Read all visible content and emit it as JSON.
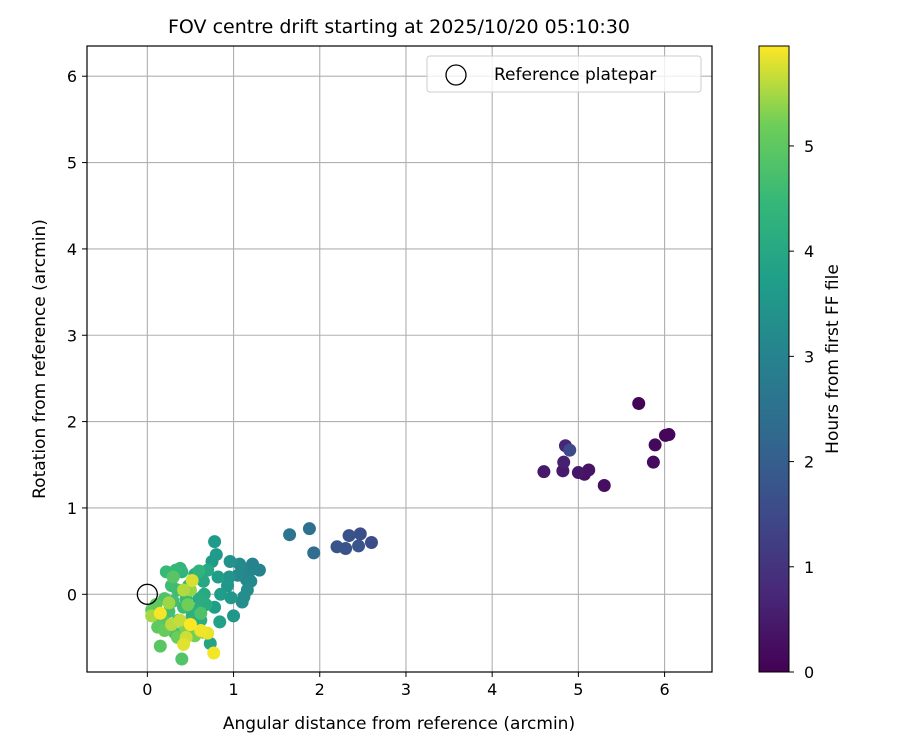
{
  "chart_data": {
    "type": "scatter",
    "title": "FOV centre drift starting at 2025/10/20 05:10:30",
    "xlabel": "Angular distance from reference (arcmin)",
    "ylabel": "Rotation from reference (arcmin)",
    "xlim": [
      -0.7,
      6.55
    ],
    "ylim": [
      -0.9,
      6.35
    ],
    "xticks": [
      0,
      1,
      2,
      3,
      4,
      5,
      6
    ],
    "yticks": [
      0,
      1,
      2,
      3,
      4,
      5,
      6
    ],
    "grid": true,
    "legend": {
      "placement": "top-right",
      "entries": [
        "Reference platepar"
      ]
    },
    "reference_point": {
      "x": 0,
      "y": 0
    },
    "colorbar": {
      "label": "Hours from first FF file",
      "range": [
        0,
        5.95
      ],
      "ticks": [
        0,
        1,
        2,
        3,
        4,
        5
      ],
      "colormap": "viridis"
    },
    "points": [
      {
        "x": 5.7,
        "y": 2.21,
        "h": 0.05
      },
      {
        "x": 6.01,
        "y": 1.84,
        "h": 0.1
      },
      {
        "x": 6.05,
        "y": 1.85,
        "h": 0.12
      },
      {
        "x": 5.89,
        "y": 1.73,
        "h": 0.15
      },
      {
        "x": 5.87,
        "y": 1.53,
        "h": 0.2
      },
      {
        "x": 5.3,
        "y": 1.26,
        "h": 0.25
      },
      {
        "x": 5.07,
        "y": 1.39,
        "h": 0.3
      },
      {
        "x": 5.12,
        "y": 1.44,
        "h": 0.35
      },
      {
        "x": 5.0,
        "y": 1.41,
        "h": 0.4
      },
      {
        "x": 4.6,
        "y": 1.42,
        "h": 0.45
      },
      {
        "x": 4.82,
        "y": 1.43,
        "h": 0.5
      },
      {
        "x": 4.83,
        "y": 1.53,
        "h": 0.6
      },
      {
        "x": 4.85,
        "y": 1.72,
        "h": 0.7
      },
      {
        "x": 4.9,
        "y": 1.67,
        "h": 1.5
      },
      {
        "x": 2.6,
        "y": 0.6,
        "h": 1.6
      },
      {
        "x": 2.47,
        "y": 0.7,
        "h": 1.65
      },
      {
        "x": 2.34,
        "y": 0.68,
        "h": 1.7
      },
      {
        "x": 2.3,
        "y": 0.53,
        "h": 1.72
      },
      {
        "x": 2.2,
        "y": 0.55,
        "h": 1.75
      },
      {
        "x": 2.45,
        "y": 0.56,
        "h": 1.8
      },
      {
        "x": 1.93,
        "y": 0.48,
        "h": 2.4
      },
      {
        "x": 1.88,
        "y": 0.76,
        "h": 2.5
      },
      {
        "x": 1.65,
        "y": 0.69,
        "h": 2.6
      },
      {
        "x": 1.3,
        "y": 0.28,
        "h": 3.0
      },
      {
        "x": 1.22,
        "y": 0.35,
        "h": 3.0
      },
      {
        "x": 1.18,
        "y": 0.26,
        "h": 3.05
      },
      {
        "x": 1.1,
        "y": 0.3,
        "h": 3.1
      },
      {
        "x": 1.15,
        "y": 0.17,
        "h": 3.1
      },
      {
        "x": 1.2,
        "y": 0.15,
        "h": 3.15
      },
      {
        "x": 1.07,
        "y": 0.35,
        "h": 3.2
      },
      {
        "x": 1.05,
        "y": 0.22,
        "h": 3.2
      },
      {
        "x": 1.16,
        "y": 0.05,
        "h": 3.25
      },
      {
        "x": 1.12,
        "y": -0.03,
        "h": 3.3
      },
      {
        "x": 1.1,
        "y": -0.09,
        "h": 3.3
      },
      {
        "x": 0.96,
        "y": 0.38,
        "h": 3.4
      },
      {
        "x": 0.95,
        "y": 0.2,
        "h": 3.45
      },
      {
        "x": 0.93,
        "y": 0.1,
        "h": 3.5
      },
      {
        "x": 0.97,
        "y": -0.04,
        "h": 3.55
      },
      {
        "x": 1.0,
        "y": -0.25,
        "h": 3.5
      },
      {
        "x": 0.78,
        "y": 0.61,
        "h": 3.6
      },
      {
        "x": 0.8,
        "y": 0.46,
        "h": 3.6
      },
      {
        "x": 0.75,
        "y": 0.38,
        "h": 3.65
      },
      {
        "x": 0.82,
        "y": 0.2,
        "h": 3.7
      },
      {
        "x": 0.85,
        "y": 0.0,
        "h": 3.7
      },
      {
        "x": 0.78,
        "y": -0.15,
        "h": 3.75
      },
      {
        "x": 0.84,
        "y": -0.32,
        "h": 3.8
      },
      {
        "x": 0.73,
        "y": -0.57,
        "h": 3.9
      },
      {
        "x": 0.7,
        "y": 0.28,
        "h": 4.0
      },
      {
        "x": 0.65,
        "y": 0.15,
        "h": 4.0
      },
      {
        "x": 0.66,
        "y": 0.0,
        "h": 4.05
      },
      {
        "x": 0.6,
        "y": -0.05,
        "h": 4.1
      },
      {
        "x": 0.68,
        "y": -0.12,
        "h": 4.1
      },
      {
        "x": 0.55,
        "y": 0.23,
        "h": 4.15
      },
      {
        "x": 0.58,
        "y": -0.18,
        "h": 4.2
      },
      {
        "x": 0.62,
        "y": -0.3,
        "h": 4.2
      },
      {
        "x": 0.52,
        "y": -0.25,
        "h": 4.25
      },
      {
        "x": 0.48,
        "y": 0.1,
        "h": 4.3
      },
      {
        "x": 0.56,
        "y": -0.4,
        "h": 4.3
      },
      {
        "x": 0.6,
        "y": 0.27,
        "h": 4.35
      },
      {
        "x": 0.4,
        "y": 0.26,
        "h": 4.4
      },
      {
        "x": 0.38,
        "y": 0.3,
        "h": 4.4
      },
      {
        "x": 0.33,
        "y": 0.28,
        "h": 4.45
      },
      {
        "x": 0.22,
        "y": 0.26,
        "h": 4.5
      },
      {
        "x": 0.45,
        "y": -0.05,
        "h": 4.5
      },
      {
        "x": 0.42,
        "y": -0.15,
        "h": 4.55
      },
      {
        "x": 0.35,
        "y": 0.05,
        "h": 4.6
      },
      {
        "x": 0.28,
        "y": 0.1,
        "h": 4.6
      },
      {
        "x": 0.3,
        "y": -0.08,
        "h": 4.65
      },
      {
        "x": 0.25,
        "y": -0.2,
        "h": 4.7
      },
      {
        "x": 0.36,
        "y": -0.3,
        "h": 4.7
      },
      {
        "x": 0.32,
        "y": -0.45,
        "h": 4.75
      },
      {
        "x": 0.2,
        "y": -0.05,
        "h": 4.8
      },
      {
        "x": 0.62,
        "y": -0.22,
        "h": 4.8
      },
      {
        "x": 0.4,
        "y": -0.75,
        "h": 4.85
      },
      {
        "x": 0.3,
        "y": 0.2,
        "h": 4.9
      },
      {
        "x": 0.18,
        "y": -0.3,
        "h": 4.9
      },
      {
        "x": 0.15,
        "y": -0.6,
        "h": 4.95
      },
      {
        "x": 0.12,
        "y": -0.38,
        "h": 5.0
      },
      {
        "x": 0.1,
        "y": -0.12,
        "h": 5.0
      },
      {
        "x": 0.05,
        "y": -0.18,
        "h": 5.05
      },
      {
        "x": 0.2,
        "y": -0.42,
        "h": 5.1
      },
      {
        "x": 0.35,
        "y": -0.5,
        "h": 5.15
      },
      {
        "x": 0.47,
        "y": -0.12,
        "h": 5.2
      },
      {
        "x": 0.55,
        "y": -0.48,
        "h": 5.25
      },
      {
        "x": 0.44,
        "y": -0.38,
        "h": 5.3
      },
      {
        "x": 0.65,
        "y": -0.44,
        "h": 5.35
      },
      {
        "x": 0.5,
        "y": 0.05,
        "h": 5.4
      },
      {
        "x": 0.25,
        "y": -0.1,
        "h": 5.45
      },
      {
        "x": 0.05,
        "y": -0.25,
        "h": 5.5
      },
      {
        "x": 0.42,
        "y": 0.05,
        "h": 5.55
      },
      {
        "x": 0.28,
        "y": -0.35,
        "h": 5.6
      },
      {
        "x": 0.38,
        "y": -0.3,
        "h": 5.65
      },
      {
        "x": 0.45,
        "y": -0.5,
        "h": 5.7
      },
      {
        "x": 0.52,
        "y": 0.16,
        "h": 5.75
      },
      {
        "x": 0.42,
        "y": -0.58,
        "h": 5.8
      },
      {
        "x": 0.7,
        "y": -0.45,
        "h": 5.85
      },
      {
        "x": 0.62,
        "y": -0.42,
        "h": 5.88
      },
      {
        "x": 0.77,
        "y": -0.68,
        "h": 5.9
      },
      {
        "x": 0.15,
        "y": -0.22,
        "h": 5.92
      },
      {
        "x": 0.5,
        "y": -0.35,
        "h": 5.95
      }
    ]
  }
}
